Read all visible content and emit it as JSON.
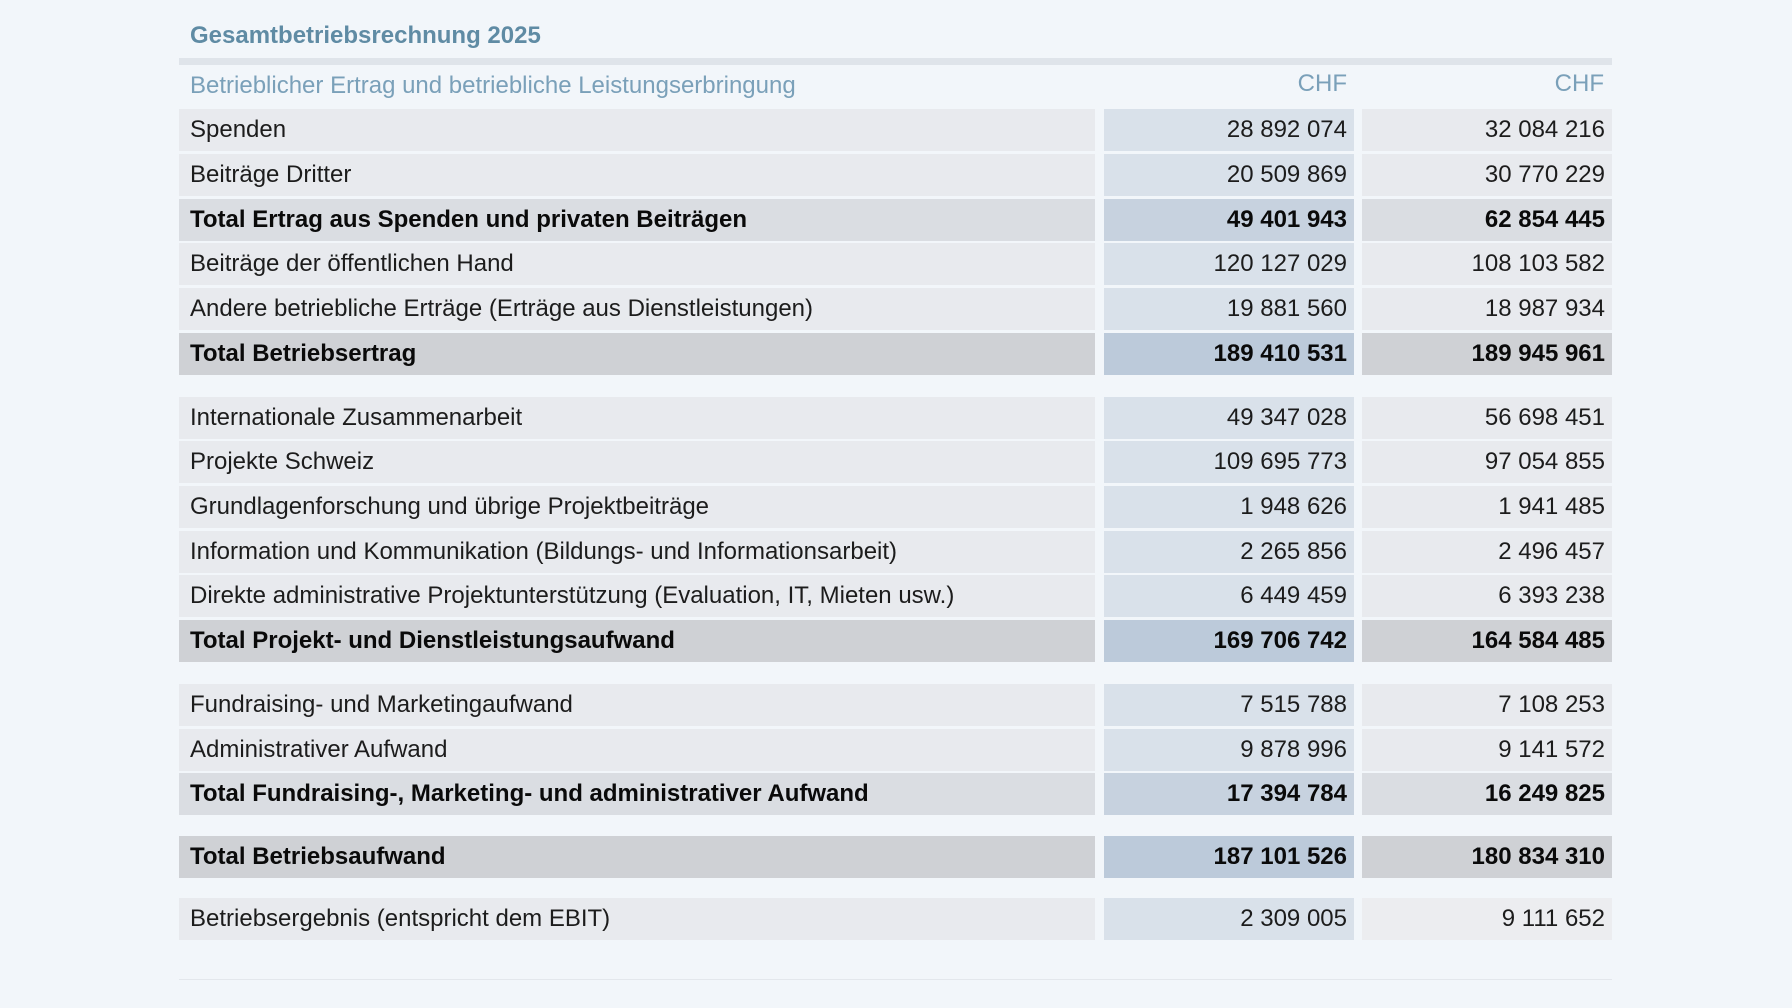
{
  "title": "Gesamtbetriebsrechnung 2025",
  "header": {
    "label": "Betrieblicher Ertrag und betriebliche Leistungserbringung",
    "col1": "CHF",
    "col2": "CHF"
  },
  "rows": [
    {
      "label": "Spenden",
      "v1": "28 892 074",
      "v2": "32 084 216"
    },
    {
      "label": "Beiträge Dritter",
      "v1": "20 509 869",
      "v2": "30 770 229"
    },
    {
      "label": "Total Ertrag aus Spenden und privaten Beiträgen",
      "v1": "49 401 943",
      "v2": "62 854 445"
    },
    {
      "label": "Beiträge der öffentlichen Hand",
      "v1": "120 127 029",
      "v2": "108 103 582"
    },
    {
      "label": "Andere betriebliche Erträge (Erträge aus Dienstleistungen)",
      "v1": "19 881 560",
      "v2": "18 987 934"
    },
    {
      "label": "Total Betriebsertrag",
      "v1": "189 410 531",
      "v2": "189 945 961"
    },
    {
      "label": "Internationale Zusammenarbeit",
      "v1": "49 347 028",
      "v2": "56 698 451"
    },
    {
      "label": "Projekte Schweiz",
      "v1": "109 695 773",
      "v2": "97 054 855"
    },
    {
      "label": "Grundlagenforschung und übrige Projektbeiträge",
      "v1": "1 948 626",
      "v2": "1 941 485"
    },
    {
      "label": "Information und Kommunikation (Bildungs- und Informationsarbeit)",
      "v1": "2 265 856",
      "v2": "2 496 457"
    },
    {
      "label": "Direkte administrative Projektunterstützung (Evaluation, IT, Mieten usw.)",
      "v1": "6 449 459",
      "v2": "6 393 238"
    },
    {
      "label": "Total Projekt- und Dienstleistungsaufwand",
      "v1": "169 706 742",
      "v2": "164 584 485"
    },
    {
      "label": "Fundraising- und Marketingaufwand",
      "v1": "7 515 788",
      "v2": "7 108 253"
    },
    {
      "label": "Administrativer Aufwand",
      "v1": "9 878 996",
      "v2": "9 141 572"
    },
    {
      "label": "Total Fundraising-, Marketing- und administrativer Aufwand",
      "v1": "17 394 784",
      "v2": "16 249 825"
    },
    {
      "label": "Total Betriebsaufwand",
      "v1": "187 101 526",
      "v2": "180 834 310"
    },
    {
      "label": "Betriebsergebnis (entspricht dem EBIT)",
      "v1": "2 309 005",
      "v2": "9 111 652"
    }
  ]
}
